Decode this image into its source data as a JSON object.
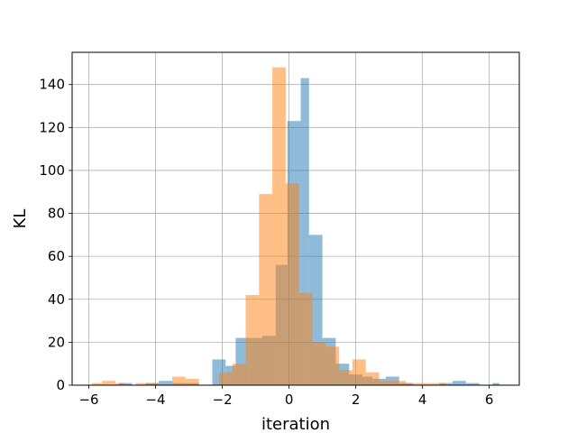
{
  "chart_data": {
    "type": "bar",
    "subtype": "overlapping-histogram",
    "title": "",
    "xlabel": "iteration",
    "ylabel": "KL",
    "xlim": [
      -6.5,
      6.9
    ],
    "ylim": [
      0,
      155
    ],
    "xticks": [
      -6,
      -4,
      -2,
      0,
      2,
      4,
      6
    ],
    "yticks": [
      0,
      20,
      40,
      60,
      80,
      100,
      120,
      140
    ],
    "grid": true,
    "legend": "none",
    "series": [
      {
        "color": "#1f77b4",
        "opacity": 0.5,
        "bins": [
          {
            "x0": -5.9,
            "x1": -5.5,
            "value": 0
          },
          {
            "x0": -5.5,
            "x1": -5.1,
            "value": 0
          },
          {
            "x0": -5.1,
            "x1": -4.7,
            "value": 1
          },
          {
            "x0": -4.7,
            "x1": -4.3,
            "value": 0
          },
          {
            "x0": -4.3,
            "x1": -3.9,
            "value": 1
          },
          {
            "x0": -3.9,
            "x1": -3.5,
            "value": 2
          },
          {
            "x0": -3.5,
            "x1": -3.1,
            "value": 1
          },
          {
            "x0": -3.1,
            "x1": -2.7,
            "value": 1
          },
          {
            "x0": -2.7,
            "x1": -2.3,
            "value": 0
          },
          {
            "x0": -2.3,
            "x1": -1.9,
            "value": 12
          },
          {
            "x0": -1.9,
            "x1": -1.6,
            "value": 9
          },
          {
            "x0": -1.6,
            "x1": -1.2,
            "value": 22
          },
          {
            "x0": -1.2,
            "x1": -0.8,
            "value": 22
          },
          {
            "x0": -0.8,
            "x1": -0.4,
            "value": 23
          },
          {
            "x0": -0.4,
            "x1": -0.05,
            "value": 56
          },
          {
            "x0": -0.05,
            "x1": 0.35,
            "value": 123
          },
          {
            "x0": 0.35,
            "x1": 0.6,
            "value": 143
          },
          {
            "x0": 0.6,
            "x1": 1.0,
            "value": 70
          },
          {
            "x0": 1.0,
            "x1": 1.4,
            "value": 22
          },
          {
            "x0": 1.4,
            "x1": 1.8,
            "value": 10
          },
          {
            "x0": 1.8,
            "x1": 2.2,
            "value": 5
          },
          {
            "x0": 2.2,
            "x1": 2.5,
            "value": 4
          },
          {
            "x0": 2.5,
            "x1": 2.9,
            "value": 3
          },
          {
            "x0": 2.9,
            "x1": 3.3,
            "value": 4
          },
          {
            "x0": 3.3,
            "x1": 3.7,
            "value": 1
          },
          {
            "x0": 3.7,
            "x1": 4.1,
            "value": 0
          },
          {
            "x0": 4.1,
            "x1": 4.5,
            "value": 0
          },
          {
            "x0": 4.5,
            "x1": 4.9,
            "value": 1
          },
          {
            "x0": 4.9,
            "x1": 5.3,
            "value": 2
          },
          {
            "x0": 5.3,
            "x1": 5.7,
            "value": 1
          },
          {
            "x0": 5.7,
            "x1": 6.1,
            "value": 0
          },
          {
            "x0": 6.1,
            "x1": 6.3,
            "value": 1
          }
        ]
      },
      {
        "color": "#ff7f0e",
        "opacity": 0.5,
        "bins": [
          {
            "x0": -5.9,
            "x1": -5.6,
            "value": 1
          },
          {
            "x0": -5.6,
            "x1": -5.2,
            "value": 2
          },
          {
            "x0": -5.2,
            "x1": -4.9,
            "value": 1
          },
          {
            "x0": -4.9,
            "x1": -4.6,
            "value": 0
          },
          {
            "x0": -4.6,
            "x1": -4.2,
            "value": 1
          },
          {
            "x0": -4.2,
            "x1": -3.9,
            "value": 1
          },
          {
            "x0": -3.9,
            "x1": -3.5,
            "value": 0
          },
          {
            "x0": -3.5,
            "x1": -3.1,
            "value": 4
          },
          {
            "x0": -3.1,
            "x1": -2.7,
            "value": 3
          },
          {
            "x0": -2.7,
            "x1": -2.3,
            "value": 0
          },
          {
            "x0": -2.1,
            "x1": -1.7,
            "value": 6
          },
          {
            "x0": -1.7,
            "x1": -1.3,
            "value": 10
          },
          {
            "x0": -1.3,
            "x1": -0.9,
            "value": 42
          },
          {
            "x0": -0.9,
            "x1": -0.5,
            "value": 89
          },
          {
            "x0": -0.5,
            "x1": -0.1,
            "value": 148
          },
          {
            "x0": -0.1,
            "x1": 0.3,
            "value": 94
          },
          {
            "x0": 0.3,
            "x1": 0.7,
            "value": 43
          },
          {
            "x0": 0.7,
            "x1": 1.1,
            "value": 20
          },
          {
            "x0": 1.1,
            "x1": 1.5,
            "value": 18
          },
          {
            "x0": 1.5,
            "x1": 1.9,
            "value": 7
          },
          {
            "x0": 1.9,
            "x1": 2.3,
            "value": 12
          },
          {
            "x0": 2.3,
            "x1": 2.7,
            "value": 6
          },
          {
            "x0": 2.7,
            "x1": 3.1,
            "value": 2
          },
          {
            "x0": 3.1,
            "x1": 3.5,
            "value": 2
          },
          {
            "x0": 3.5,
            "x1": 3.9,
            "value": 1
          },
          {
            "x0": 3.9,
            "x1": 4.3,
            "value": 1
          },
          {
            "x0": 4.3,
            "x1": 4.7,
            "value": 1
          }
        ]
      }
    ]
  }
}
